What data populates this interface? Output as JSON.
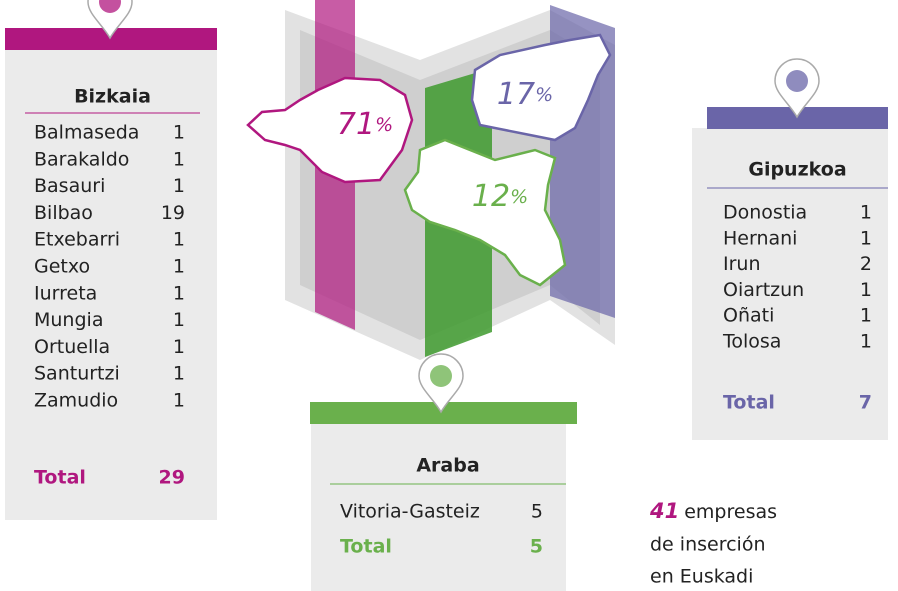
{
  "regions": [
    {
      "name": "Bizkaia",
      "rows": [
        [
          "Balmaseda",
          1
        ],
        [
          "Barakaldo",
          1
        ],
        [
          "Basauri",
          1
        ],
        [
          "Bilbao",
          19
        ],
        [
          "Etxebarri",
          1
        ],
        [
          "Getxo",
          1
        ],
        [
          "Iurreta",
          1
        ],
        [
          "Mungia",
          1
        ],
        [
          "Ortuella",
          1
        ],
        [
          "Santurtzi",
          1
        ],
        [
          "Zamudio",
          1
        ]
      ],
      "total_label": "Total",
      "total": 29,
      "share": 71,
      "share_unit": "%",
      "color": "#b0177f"
    },
    {
      "name": "Gipuzkoa",
      "rows": [
        [
          "Donostia",
          1
        ],
        [
          "Hernani",
          1
        ],
        [
          "Irun",
          2
        ],
        [
          "Oiartzun",
          1
        ],
        [
          "Oñati",
          1
        ],
        [
          "Tolosa",
          1
        ]
      ],
      "total_label": "Total",
      "total": 7,
      "share": 17,
      "share_unit": "%",
      "color": "#6a65a8"
    },
    {
      "name": "Araba",
      "rows": [
        [
          "Vitoria-Gasteiz",
          5
        ]
      ],
      "total_label": "Total",
      "total": 5,
      "share": 12,
      "share_unit": "%",
      "color": "#6ab04c"
    }
  ],
  "summary": {
    "count": 41,
    "lines": [
      "empresas",
      "de inserción",
      "en Euskadi"
    ]
  }
}
